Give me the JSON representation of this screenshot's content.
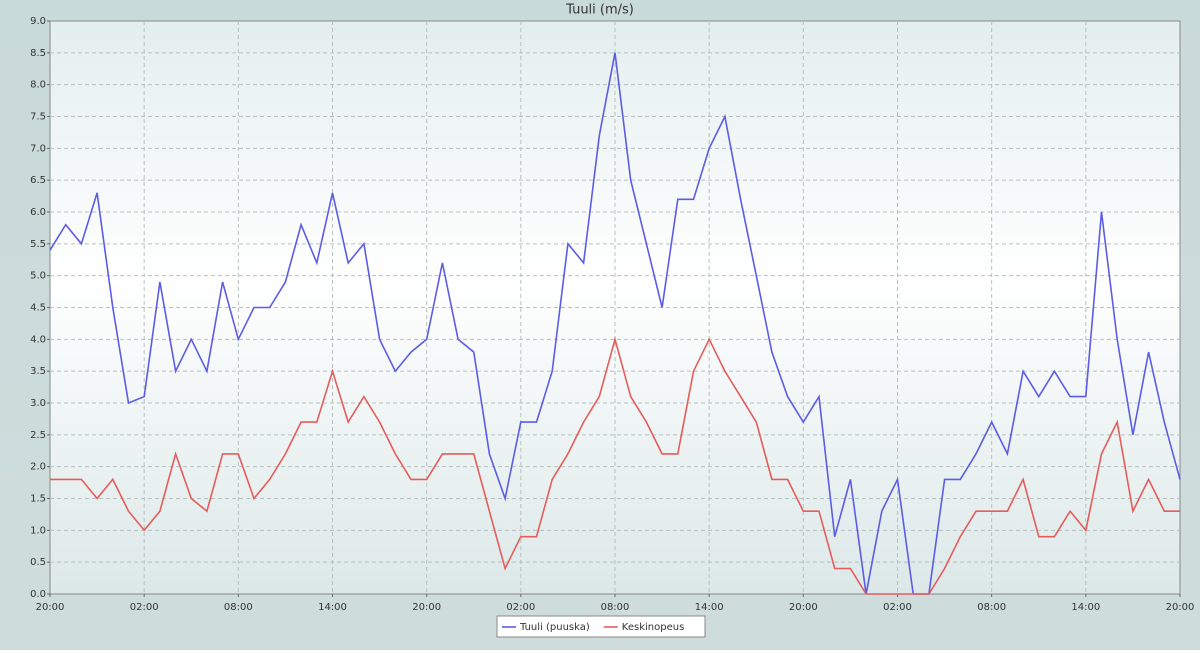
{
  "chart_data": {
    "type": "line",
    "title": "Tuuli (m/s)",
    "x": [
      0,
      1,
      2,
      3,
      4,
      5,
      6,
      7,
      8,
      9,
      10,
      11,
      12,
      13,
      14,
      15,
      16,
      17,
      18,
      19,
      20,
      21,
      22,
      23,
      24,
      25,
      26,
      27,
      28,
      29,
      30,
      31,
      32,
      33,
      34,
      35,
      36,
      37,
      38,
      39,
      40,
      41,
      42,
      43,
      44,
      45,
      46,
      47,
      48,
      49,
      50,
      51,
      52,
      53,
      54,
      55,
      56,
      57,
      58,
      59,
      60,
      61,
      62,
      63,
      64,
      65,
      66,
      67,
      68,
      69,
      70,
      71,
      72
    ],
    "series": [
      {
        "name": "Tuuli (puuska)",
        "color": "#5c5ce6",
        "values": [
          5.4,
          5.8,
          5.5,
          6.3,
          4.5,
          3.0,
          3.1,
          4.9,
          3.5,
          4.0,
          3.5,
          4.9,
          4.0,
          4.5,
          4.5,
          4.9,
          5.8,
          5.2,
          6.3,
          5.2,
          5.5,
          4.0,
          3.5,
          3.8,
          4.0,
          5.2,
          4.0,
          3.8,
          2.2,
          1.5,
          2.7,
          2.7,
          3.5,
          5.5,
          5.2,
          7.2,
          8.5,
          6.5,
          5.5,
          4.5,
          6.2,
          6.2,
          7.0,
          7.5,
          6.2,
          5.0,
          3.8,
          3.1,
          2.7,
          3.1,
          0.9,
          1.8,
          0.0,
          1.3,
          1.8,
          0.0,
          0.0,
          1.8,
          1.8,
          2.2,
          2.7,
          2.2,
          3.5,
          3.1,
          3.5,
          3.1,
          3.1,
          6.0,
          4.0,
          2.5,
          3.8,
          2.7,
          1.8
        ]
      },
      {
        "name": "Keskinopeus",
        "color": "#e65c5c",
        "values": [
          1.8,
          1.8,
          1.8,
          1.5,
          1.8,
          1.3,
          1.0,
          1.3,
          2.2,
          1.5,
          1.3,
          2.2,
          2.2,
          1.5,
          1.8,
          2.2,
          2.7,
          2.7,
          3.5,
          2.7,
          3.1,
          2.7,
          2.2,
          1.8,
          1.8,
          2.2,
          2.2,
          2.2,
          1.3,
          0.4,
          0.9,
          0.9,
          1.8,
          2.2,
          2.7,
          3.1,
          4.0,
          3.1,
          2.7,
          2.2,
          2.2,
          3.5,
          4.0,
          3.5,
          3.1,
          2.7,
          1.8,
          1.8,
          1.3,
          1.3,
          0.4,
          0.4,
          0.0,
          0.0,
          0.0,
          0.0,
          0.0,
          0.4,
          0.9,
          1.3,
          1.3,
          1.3,
          1.8,
          0.9,
          0.9,
          1.3,
          1.0,
          2.2,
          2.7,
          1.3,
          1.8,
          1.3,
          1.3
        ]
      }
    ],
    "xlim": [
      0,
      72
    ],
    "xticks": [
      {
        "value": 0,
        "label": "20:00"
      },
      {
        "value": 6,
        "label": "02:00"
      },
      {
        "value": 12,
        "label": "08:00"
      },
      {
        "value": 18,
        "label": "14:00"
      },
      {
        "value": 24,
        "label": "20:00"
      },
      {
        "value": 30,
        "label": "02:00"
      },
      {
        "value": 36,
        "label": "08:00"
      },
      {
        "value": 42,
        "label": "14:00"
      },
      {
        "value": 48,
        "label": "20:00"
      },
      {
        "value": 54,
        "label": "02:00"
      },
      {
        "value": 60,
        "label": "08:00"
      },
      {
        "value": 66,
        "label": "14:00"
      },
      {
        "value": 72,
        "label": "20:00"
      }
    ],
    "ylim": [
      0,
      9
    ],
    "yticks": [
      {
        "value": 0,
        "label": "0.0"
      },
      0.5,
      {
        "value": 1,
        "label": "1.0"
      },
      1.5,
      {
        "value": 2,
        "label": "2.0"
      },
      2.5,
      {
        "value": 3,
        "label": "3.0"
      },
      3.5,
      {
        "value": 4,
        "label": "4.0"
      },
      4.5,
      {
        "value": 5,
        "label": "5.0"
      },
      5.5,
      {
        "value": 6,
        "label": "6.0"
      },
      6.5,
      {
        "value": 7,
        "label": "7.0"
      },
      7.5,
      {
        "value": 8,
        "label": "8.0"
      },
      8.5,
      {
        "value": 9,
        "label": "9.0"
      }
    ],
    "grid": true,
    "legend": "bottom"
  }
}
